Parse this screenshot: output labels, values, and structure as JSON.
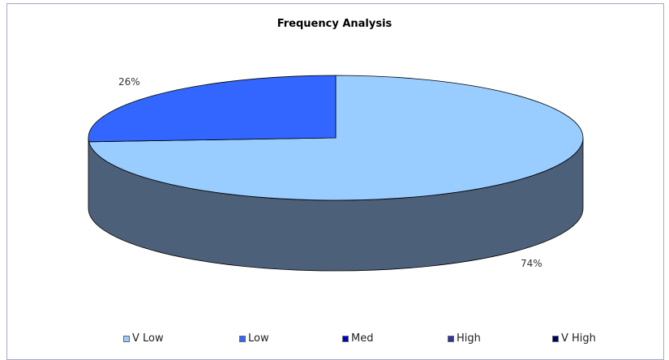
{
  "chart_data": {
    "type": "pie",
    "title": "Frequency Analysis",
    "categories": [
      "V Low",
      "Low",
      "Med",
      "High",
      "V High"
    ],
    "values": [
      74,
      26,
      0,
      0,
      0
    ],
    "data_labels": [
      "74%",
      "26%",
      "",
      "",
      ""
    ],
    "colors": [
      "#99ccff",
      "#3366ff",
      "#0000cc",
      "#333399",
      "#000066"
    ],
    "side_color": "#4d6079",
    "legend_position": "bottom",
    "three_d": true
  }
}
